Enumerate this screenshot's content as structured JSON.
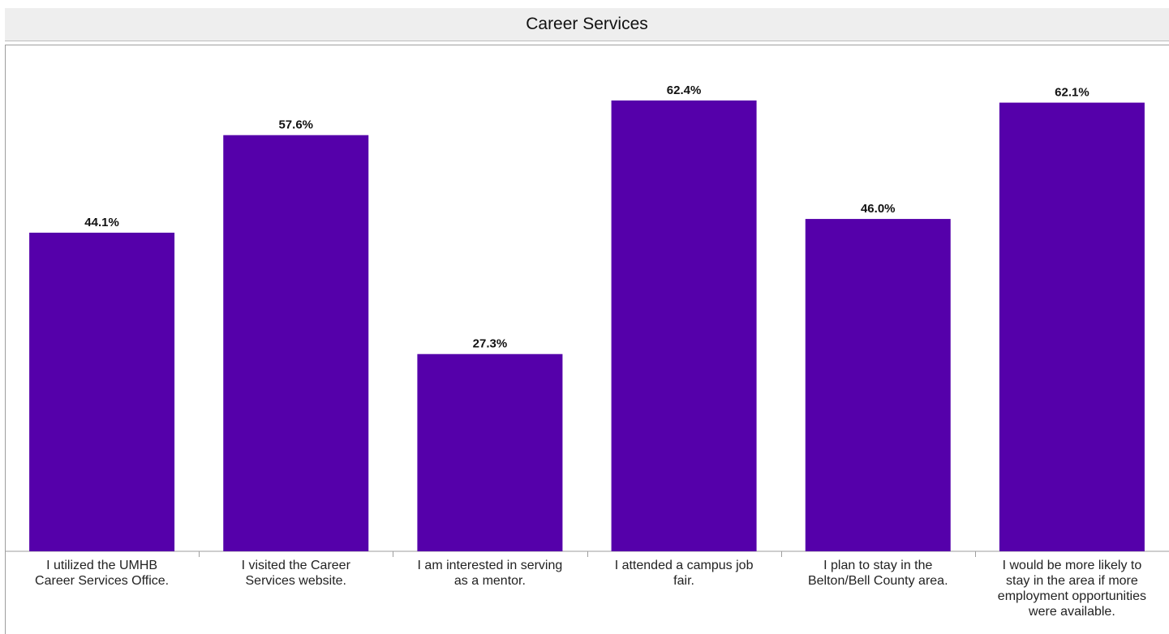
{
  "chart_data": {
    "type": "bar",
    "title": "Career Services",
    "categories": [
      [
        "I utilized the UMHB",
        "Career Services Office."
      ],
      [
        "I visited the Career",
        "Services website."
      ],
      [
        "I am interested in serving",
        "as a mentor."
      ],
      [
        "I attended a campus job",
        "fair."
      ],
      [
        "I plan to stay in the",
        "Belton/Bell County area."
      ],
      [
        "I would be more likely to",
        "stay in the area if more",
        "employment opportunities",
        "were available."
      ]
    ],
    "values": [
      44.1,
      57.6,
      27.3,
      62.4,
      46.0,
      62.1
    ],
    "value_labels": [
      "44.1%",
      "57.6%",
      "27.3%",
      "62.4%",
      "46.0%",
      "62.1%"
    ],
    "ylim": [
      0,
      73.5
    ],
    "grid": false,
    "bar_color": "#5500aa"
  }
}
